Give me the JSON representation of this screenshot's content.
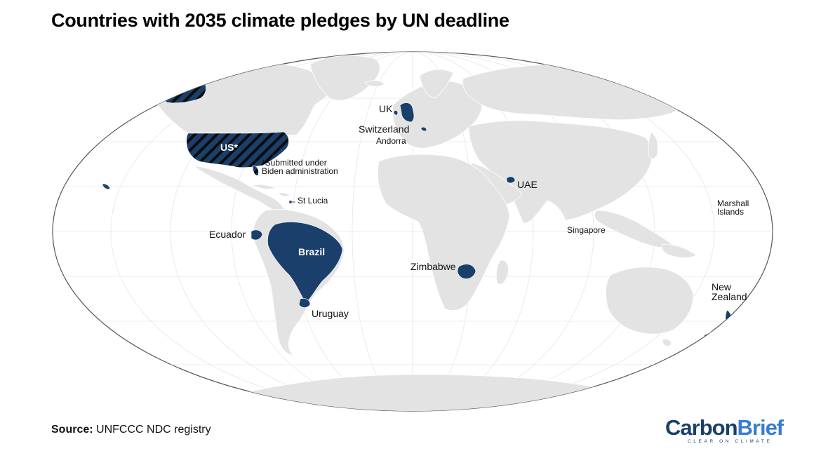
{
  "title": "Countries with 2035 climate pledges by UN deadline",
  "source": {
    "label": "Source:",
    "text": "UNFCCC NDC registry"
  },
  "logo": {
    "carbon": "Carbon",
    "brief": "Brief",
    "tagline": "CLEAR ON CLIMATE"
  },
  "colors": {
    "pledged": "#1a3f6b",
    "land": "#e3e3e3",
    "ocean": "#ffffff",
    "border": "#ffffff"
  },
  "labels": {
    "us": "US*",
    "us_note_1": "*Submitted under",
    "us_note_2": "Biden administration",
    "uk": "UK",
    "switzerland": "Switzerland",
    "andorra": "Andorra",
    "st_lucia": "St Lucia",
    "ecuador": "Ecuador",
    "brazil": "Brazil",
    "uruguay": "Uruguay",
    "uae": "UAE",
    "zimbabwe": "Zimbabwe",
    "singapore": "Singapore",
    "marshall_1": "Marshall",
    "marshall_2": "Islands",
    "nz_1": "New",
    "nz_2": "Zealand"
  }
}
